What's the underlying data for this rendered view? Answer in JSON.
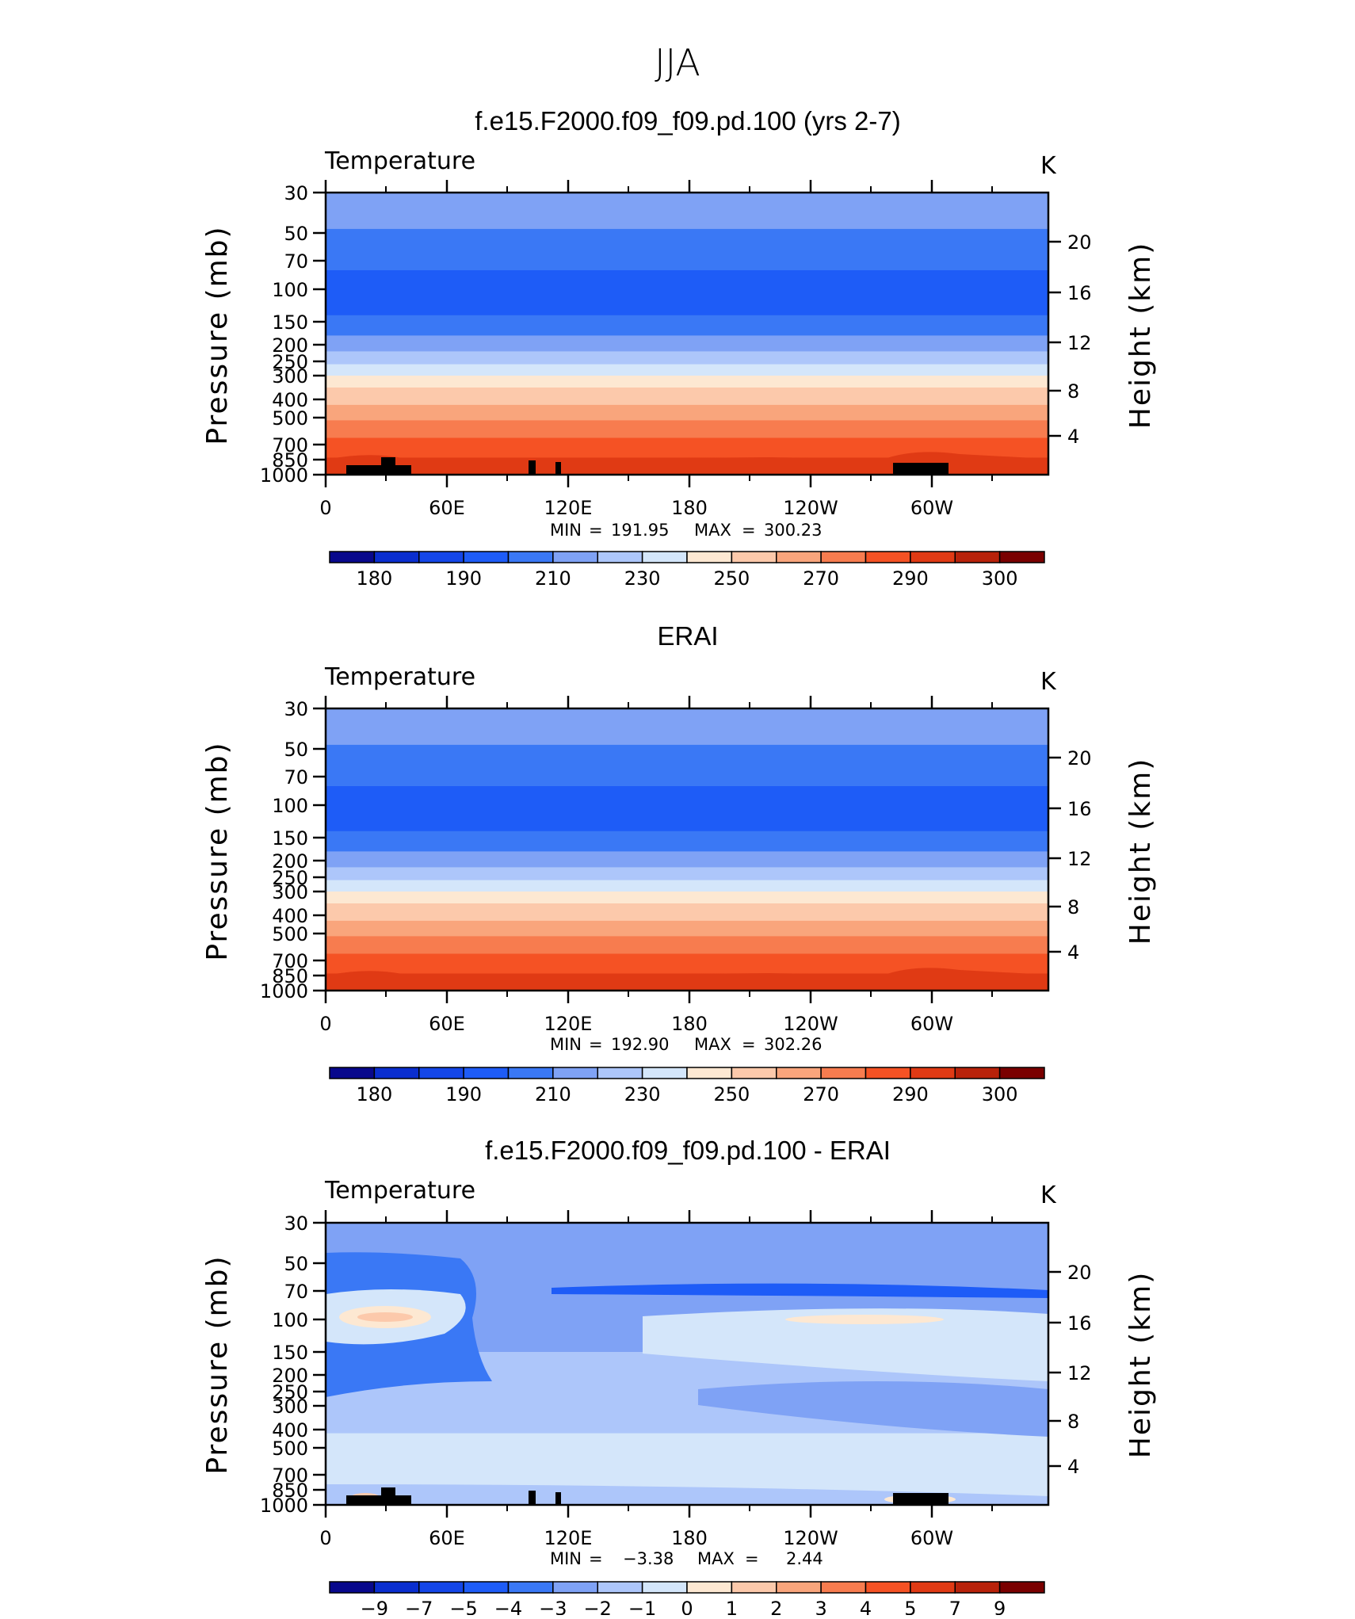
{
  "figure": {
    "title": "JJA",
    "colors": {
      "abs_palette": [
        "#08088c",
        "#0a2ecf",
        "#1446e8",
        "#1e5cf7",
        "#3a78f5",
        "#7fa2f5",
        "#adc6fa",
        "#d4e6fa",
        "#fde8d2",
        "#fcc9ab",
        "#f9a57c",
        "#f77c4f",
        "#f55224",
        "#e03a14",
        "#b8220a",
        "#7a0000"
      ],
      "diff_palette": [
        "#08088c",
        "#0a2ecf",
        "#1446e8",
        "#1e5cf7",
        "#3a78f5",
        "#7fa2f5",
        "#adc6fa",
        "#d4e6fa",
        "#fde8d2",
        "#fcc9ab",
        "#f9a57c",
        "#f77c4f",
        "#f55224",
        "#e03a14",
        "#b8220a",
        "#7a0000"
      ],
      "topography": "#000000"
    }
  },
  "chart_data": [
    {
      "type": "heatmap",
      "title": "f.e15.F2000.f09_f09.pd.100 (yrs 2-7)",
      "left_label": "Temperature",
      "right_label": "K",
      "ylabel": "Pressure (mb)",
      "y2label": "Height (km)",
      "x_tick_labels": [
        "0",
        "60E",
        "120E",
        "180",
        "120W",
        "60W"
      ],
      "y_tick_labels": [
        "30",
        "50",
        "70",
        "100",
        "150",
        "200",
        "250",
        "300",
        "400",
        "500",
        "700",
        "850",
        "1000"
      ],
      "y2_tick_labels": [
        "20",
        "16",
        "12",
        "8",
        "4"
      ],
      "stats": {
        "min_label": "MIN",
        "min": "191.95",
        "max_label": "MAX",
        "max": "300.23",
        "eq": "="
      },
      "colorbar_labels": [
        "180",
        "190",
        "210",
        "230",
        "250",
        "270",
        "290",
        "300"
      ],
      "profile": [
        {
          "p": 30,
          "k": 5
        },
        {
          "p": 45,
          "k": 5
        },
        {
          "p": 48,
          "k": 4
        },
        {
          "p": 75,
          "k": 4
        },
        {
          "p": 80,
          "k": 3
        },
        {
          "p": 130,
          "k": 3
        },
        {
          "p": 140,
          "k": 4
        },
        {
          "p": 180,
          "k": 5
        },
        {
          "p": 220,
          "k": 6
        },
        {
          "p": 260,
          "k": 7
        },
        {
          "p": 300,
          "k": 8
        },
        {
          "p": 350,
          "k": 9
        },
        {
          "p": 430,
          "k": 10
        },
        {
          "p": 520,
          "k": 11
        },
        {
          "p": 650,
          "k": 12
        },
        {
          "p": 830,
          "k": 13
        },
        {
          "p": 1000,
          "k": 13
        }
      ],
      "topo": true
    },
    {
      "type": "heatmap",
      "title": "ERAI",
      "left_label": "Temperature",
      "right_label": "K",
      "ylabel": "Pressure (mb)",
      "y2label": "Height (km)",
      "x_tick_labels": [
        "0",
        "60E",
        "120E",
        "180",
        "120W",
        "60W"
      ],
      "y_tick_labels": [
        "30",
        "50",
        "70",
        "100",
        "150",
        "200",
        "250",
        "300",
        "400",
        "500",
        "700",
        "850",
        "1000"
      ],
      "y2_tick_labels": [
        "20",
        "16",
        "12",
        "8",
        "4"
      ],
      "stats": {
        "min_label": "MIN",
        "min": "192.90",
        "max_label": "MAX",
        "max": "302.26",
        "eq": "="
      },
      "colorbar_labels": [
        "180",
        "190",
        "210",
        "230",
        "250",
        "270",
        "290",
        "300"
      ],
      "profile": [
        {
          "p": 30,
          "k": 5
        },
        {
          "p": 45,
          "k": 5
        },
        {
          "p": 48,
          "k": 4
        },
        {
          "p": 75,
          "k": 4
        },
        {
          "p": 80,
          "k": 3
        },
        {
          "p": 130,
          "k": 3
        },
        {
          "p": 140,
          "k": 4
        },
        {
          "p": 180,
          "k": 5
        },
        {
          "p": 220,
          "k": 6
        },
        {
          "p": 260,
          "k": 7
        },
        {
          "p": 300,
          "k": 8
        },
        {
          "p": 350,
          "k": 9
        },
        {
          "p": 430,
          "k": 10
        },
        {
          "p": 520,
          "k": 11
        },
        {
          "p": 650,
          "k": 12
        },
        {
          "p": 830,
          "k": 13
        },
        {
          "p": 1000,
          "k": 13
        }
      ],
      "topo": false
    },
    {
      "type": "heatmap",
      "title": "f.e15.F2000.f09_f09.pd.100 - ERAI",
      "left_label": "Temperature",
      "right_label": "K",
      "ylabel": "Pressure (mb)",
      "y2label": "Height (km)",
      "x_tick_labels": [
        "0",
        "60E",
        "120E",
        "180",
        "120W",
        "60W"
      ],
      "y_tick_labels": [
        "30",
        "50",
        "70",
        "100",
        "150",
        "200",
        "250",
        "300",
        "400",
        "500",
        "700",
        "850",
        "1000"
      ],
      "y2_tick_labels": [
        "20",
        "16",
        "12",
        "8",
        "4"
      ],
      "stats": {
        "min_label": "MIN",
        "min": "−3.38",
        "max_label": "MAX",
        "max": "2.44",
        "eq": "="
      },
      "colorbar_labels": [
        "−9",
        "−7",
        "−5",
        "−4",
        "−3",
        "−2",
        "−1",
        "0",
        "1",
        "2",
        "3",
        "4",
        "5",
        "7",
        "9"
      ],
      "profile": [
        {
          "p": 30,
          "k": 5
        },
        {
          "p": 150,
          "k": 6
        },
        {
          "p": 420,
          "k": 7
        },
        {
          "p": 650,
          "k": 6
        },
        {
          "p": 1000,
          "k": 7
        }
      ],
      "topo": true
    }
  ]
}
